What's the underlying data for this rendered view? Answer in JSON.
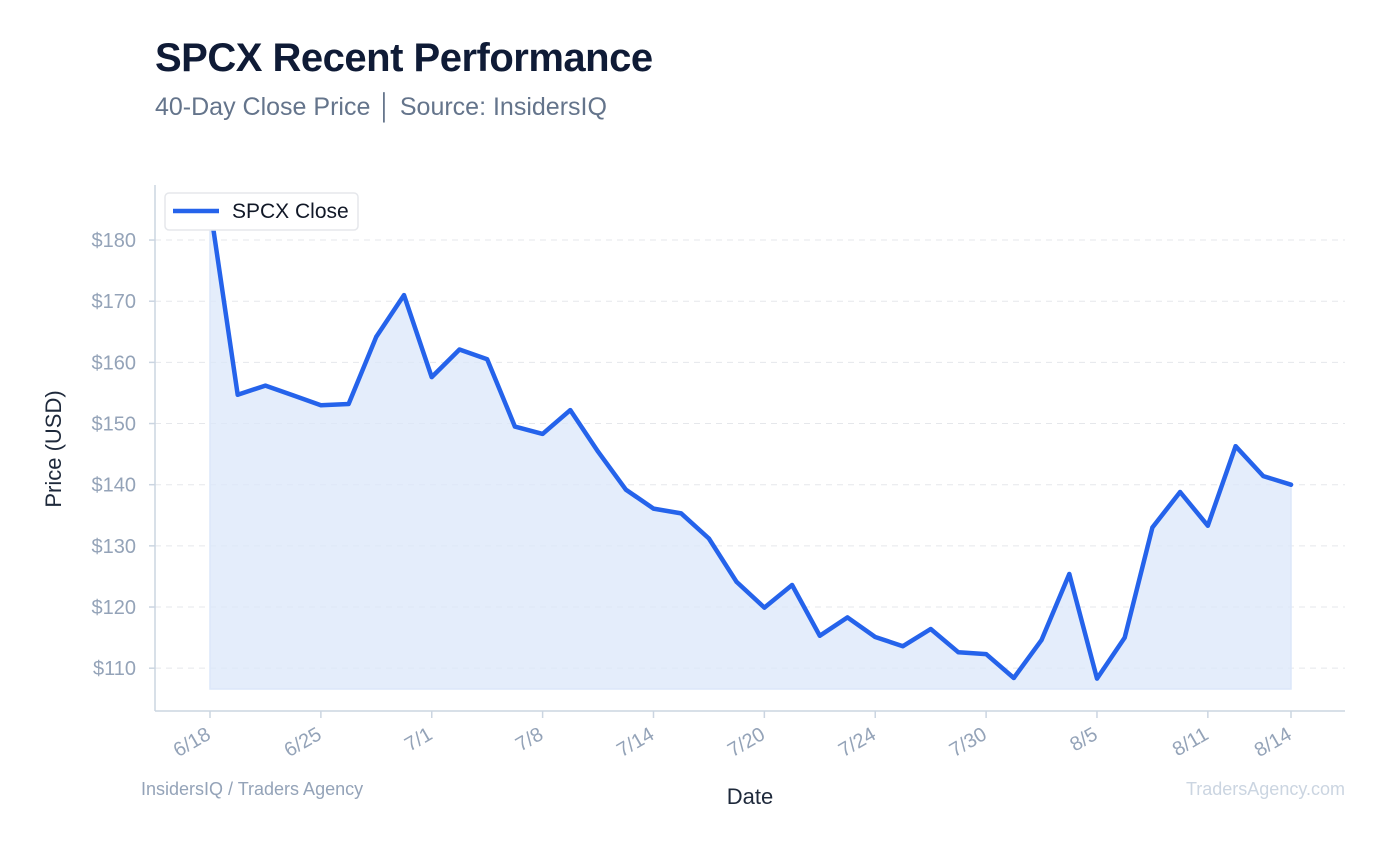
{
  "header": {
    "title": "SPCX Recent Performance",
    "subtitle": "40-Day Close Price │ Source: InsidersIQ"
  },
  "footer": {
    "left": "InsidersIQ / Traders Agency",
    "right": "TradersAgency.com"
  },
  "colors": {
    "line": "#2563eb",
    "fill": "#dbe7fa",
    "grid": "#e5e7eb",
    "axis": "#cbd5e1"
  },
  "chart_data": {
    "type": "area",
    "xlabel": "Date",
    "ylabel": "Price (USD)",
    "ylim": [
      103,
      189
    ],
    "y_ticks": [
      110,
      120,
      130,
      140,
      150,
      160,
      170,
      180
    ],
    "y_tick_labels": [
      "$110",
      "$120",
      "$130",
      "$140",
      "$150",
      "$160",
      "$170",
      "$180"
    ],
    "x_ticks": [
      {
        "index": 0,
        "label": "6/18"
      },
      {
        "index": 4,
        "label": "6/25"
      },
      {
        "index": 8,
        "label": "7/1"
      },
      {
        "index": 12,
        "label": "7/8"
      },
      {
        "index": 16,
        "label": "7/14"
      },
      {
        "index": 20,
        "label": "7/20"
      },
      {
        "index": 24,
        "label": "7/24"
      },
      {
        "index": 28,
        "label": "7/30"
      },
      {
        "index": 32,
        "label": "8/5"
      },
      {
        "index": 36,
        "label": "8/11"
      },
      {
        "index": 39,
        "label": "8/14"
      }
    ],
    "legend": {
      "position": "top-left",
      "label": "SPCX Close"
    },
    "grid": true,
    "series": [
      {
        "name": "SPCX Close",
        "values": [
          185.5,
          154.7,
          156.2,
          154.6,
          153.0,
          153.2,
          164.2,
          171.0,
          157.6,
          162.1,
          160.5,
          149.5,
          148.3,
          152.2,
          145.4,
          139.2,
          136.1,
          135.3,
          131.2,
          124.1,
          119.9,
          123.6,
          115.3,
          118.3,
          115.1,
          113.6,
          116.4,
          112.6,
          112.3,
          108.4,
          114.6,
          125.4,
          108.3,
          115.0,
          133.0,
          138.8,
          133.3,
          146.3,
          141.4,
          140.0
        ]
      }
    ]
  }
}
